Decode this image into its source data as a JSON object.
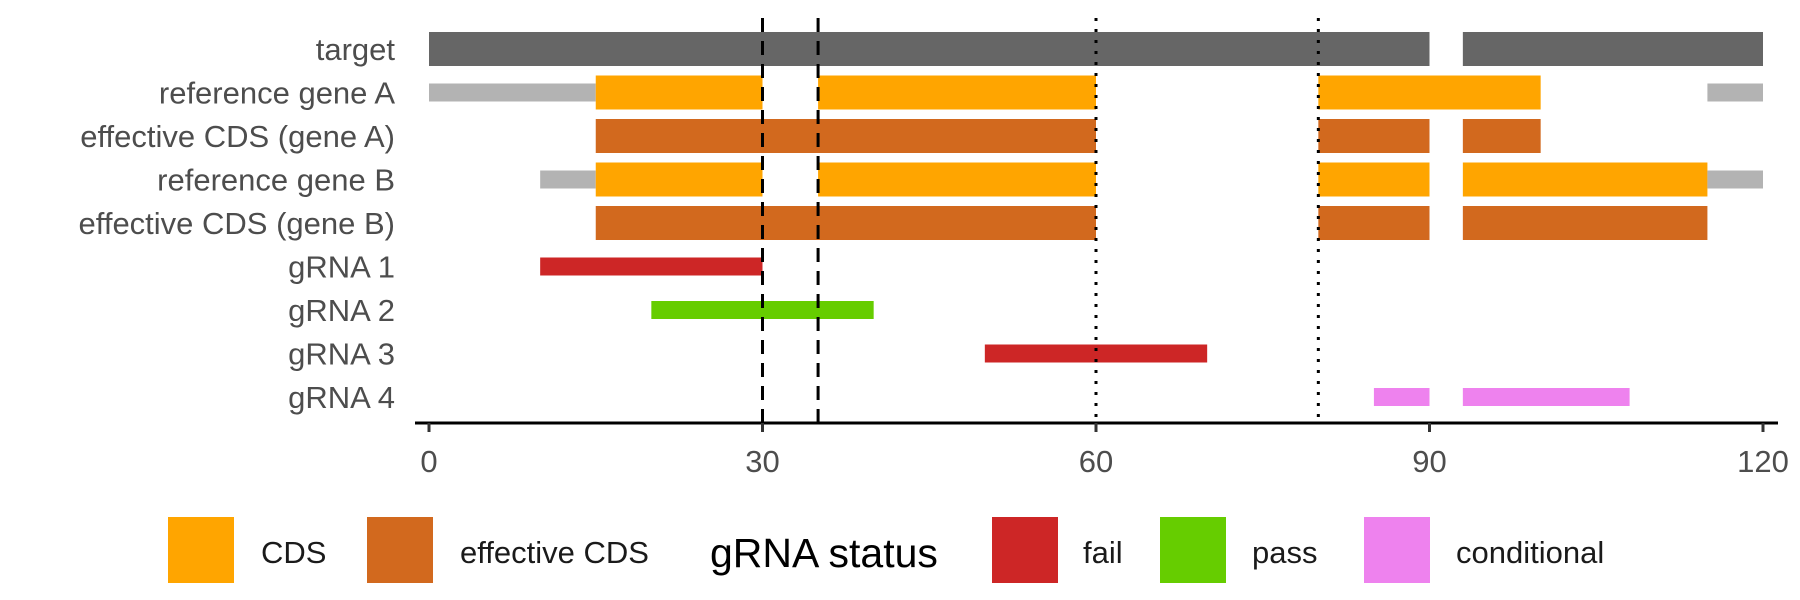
{
  "chart_data": {
    "type": "gantt",
    "xlim": [
      0,
      120
    ],
    "x_ticks": [
      "0",
      "30",
      "60",
      "90",
      "120"
    ],
    "rows": [
      "target",
      "reference gene A",
      "effective CDS (gene A)",
      "reference gene B",
      "effective CDS (gene B)",
      "gRNA 1",
      "gRNA 2",
      "gRNA 3",
      "gRNA 4"
    ],
    "segments": [
      {
        "row": "target",
        "kind": "target",
        "start": 0,
        "end": 90
      },
      {
        "row": "target",
        "kind": "target",
        "start": 93,
        "end": 120
      },
      {
        "row": "reference gene A",
        "kind": "UTR",
        "start": 0,
        "end": 15
      },
      {
        "row": "reference gene A",
        "kind": "CDS",
        "start": 15,
        "end": 30
      },
      {
        "row": "reference gene A",
        "kind": "CDS",
        "start": 35,
        "end": 60
      },
      {
        "row": "reference gene A",
        "kind": "CDS",
        "start": 80,
        "end": 100
      },
      {
        "row": "reference gene A",
        "kind": "UTR",
        "start": 115,
        "end": 120
      },
      {
        "row": "effective CDS (gene A)",
        "kind": "effective CDS",
        "start": 15,
        "end": 60
      },
      {
        "row": "effective CDS (gene A)",
        "kind": "effective CDS",
        "start": 80,
        "end": 90
      },
      {
        "row": "effective CDS (gene A)",
        "kind": "effective CDS",
        "start": 93,
        "end": 100
      },
      {
        "row": "reference gene B",
        "kind": "UTR",
        "start": 10,
        "end": 15
      },
      {
        "row": "reference gene B",
        "kind": "CDS",
        "start": 15,
        "end": 30
      },
      {
        "row": "reference gene B",
        "kind": "CDS",
        "start": 35,
        "end": 60
      },
      {
        "row": "reference gene B",
        "kind": "CDS",
        "start": 80,
        "end": 90
      },
      {
        "row": "reference gene B",
        "kind": "CDS",
        "start": 93,
        "end": 115
      },
      {
        "row": "reference gene B",
        "kind": "UTR",
        "start": 115,
        "end": 120
      },
      {
        "row": "effective CDS (gene B)",
        "kind": "effective CDS",
        "start": 15,
        "end": 60
      },
      {
        "row": "effective CDS (gene B)",
        "kind": "effective CDS",
        "start": 80,
        "end": 90
      },
      {
        "row": "effective CDS (gene B)",
        "kind": "effective CDS",
        "start": 93,
        "end": 115
      },
      {
        "row": "gRNA 1",
        "kind": "fail",
        "start": 10,
        "end": 30
      },
      {
        "row": "gRNA 2",
        "kind": "pass",
        "start": 20,
        "end": 40
      },
      {
        "row": "gRNA 3",
        "kind": "fail",
        "start": 50,
        "end": 70
      },
      {
        "row": "gRNA 4",
        "kind": "conditional",
        "start": 85,
        "end": 90
      },
      {
        "row": "gRNA 4",
        "kind": "conditional",
        "start": 93,
        "end": 108
      }
    ],
    "dashed_lines": [
      30,
      35
    ],
    "dotted_lines": [
      60,
      80
    ],
    "colors": {
      "target": "#666666",
      "UTR": "#b3b3b3",
      "CDS": "#ffa500",
      "effective CDS": "#d2691e",
      "fail": "#cd2626",
      "pass": "#66cd00",
      "conditional": "#ee82ee"
    },
    "legend": {
      "position": "bottom",
      "title": "gRNA status",
      "items_before_title": [
        {
          "label": "CDS",
          "kind": "CDS"
        },
        {
          "label": "effective CDS",
          "kind": "effective CDS"
        }
      ],
      "items_after_title": [
        {
          "label": "fail",
          "kind": "fail"
        },
        {
          "label": "pass",
          "kind": "pass"
        },
        {
          "label": "conditional",
          "kind": "conditional"
        }
      ]
    },
    "grid": false
  }
}
